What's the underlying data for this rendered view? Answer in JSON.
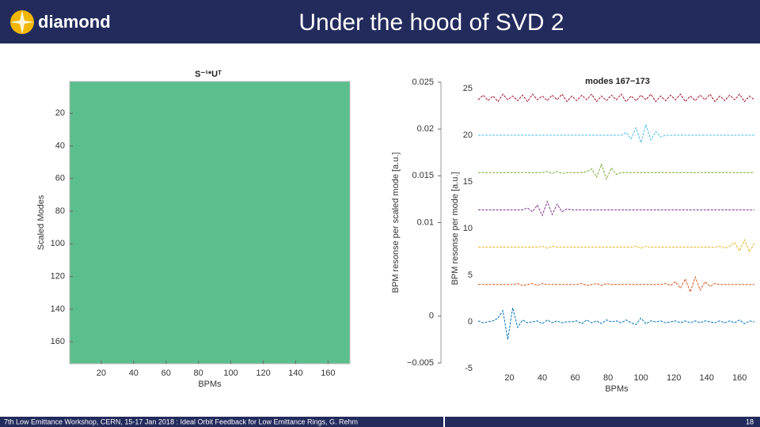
{
  "header": {
    "logo": "diamond",
    "title": "Under the hood of SVD 2"
  },
  "chart_data": [
    {
      "type": "heatmap",
      "title": "S⁻¹*Uᵀ",
      "xlabel": "BPMs",
      "ylabel": "Scaled Modes",
      "color": "#5bbf8d",
      "xlim": [
        0.5,
        173.5
      ],
      "xticks": [
        20,
        40,
        60,
        80,
        100,
        120,
        140,
        160
      ],
      "ylim": [
        0.5,
        173.5
      ],
      "y_reversed": true,
      "yticks": [
        20,
        40,
        60,
        80,
        100,
        120,
        140,
        160
      ]
    },
    {
      "type": "line",
      "ylabel": "BPM resonse per scaled mode [a.u.]",
      "ylim": [
        -0.005,
        0.025
      ],
      "yticks": [
        {
          "value": -0.005,
          "label": "−0.005"
        },
        0,
        0.01,
        0.015,
        0.02,
        0.025
      ]
    },
    {
      "type": "line",
      "title": "modes 167−173",
      "xlabel": "BPMs",
      "ylabel": "BPM resonse per mode [a.u.]",
      "xlim": [
        0.5,
        170
      ],
      "xticks": [
        20,
        40,
        60,
        80,
        100,
        120,
        140,
        160
      ],
      "ylim": [
        -5,
        25
      ],
      "yticks": [
        -5,
        0,
        5,
        10,
        15,
        20,
        25
      ],
      "x": [
        1,
        4,
        7,
        10,
        13,
        16,
        19,
        22,
        25,
        28,
        31,
        34,
        37,
        40,
        43,
        46,
        49,
        52,
        55,
        58,
        61,
        64,
        67,
        70,
        73,
        76,
        79,
        82,
        85,
        88,
        91,
        94,
        97,
        100,
        103,
        106,
        109,
        112,
        115,
        118,
        121,
        124,
        127,
        130,
        133,
        136,
        139,
        142,
        145,
        148,
        151,
        154,
        157,
        160,
        163,
        166,
        169
      ],
      "series": [
        {
          "color": "#0072bd",
          "values": [
            0.1,
            -0.1,
            0,
            0.1,
            0.4,
            1.2,
            -1.9,
            1.5,
            -0.6,
            0.2,
            -0.1,
            0,
            0.1,
            -0.2,
            0.2,
            -0.1,
            0.1,
            -0.1,
            0,
            0,
            0.1,
            -0.2,
            0.2,
            -0.1,
            0.1,
            -0.2,
            0.2,
            0,
            0.1,
            -0.1,
            0.2,
            -0.1,
            -0.3,
            0.4,
            -0.2,
            0.1,
            0,
            0.1,
            -0.1,
            0,
            0.1,
            -0.1,
            0.1,
            -0.1,
            0.1,
            -0.1,
            0.1,
            0,
            -0.1,
            0.1,
            -0.1,
            0.1,
            -0.1,
            0.2,
            -0.2,
            0.1,
            0
          ]
        },
        {
          "color": "#d95319",
          "values": [
            4,
            4,
            4,
            4,
            4,
            4,
            4,
            4,
            4.1,
            3.9,
            4,
            4.1,
            3.9,
            4.1,
            4,
            4,
            4,
            4,
            4,
            4,
            4,
            4.1,
            3.9,
            4,
            4.1,
            3.9,
            4.1,
            4,
            4,
            4,
            4,
            4,
            4,
            4,
            4,
            4,
            4,
            4,
            4.1,
            3.9,
            4.3,
            3.6,
            4.6,
            3.2,
            4.8,
            3.4,
            4.3,
            3.8,
            4.1,
            4,
            4,
            4,
            4,
            4,
            4,
            4,
            4
          ]
        },
        {
          "color": "#edb120",
          "values": [
            8,
            8,
            8,
            8,
            8,
            8,
            8,
            8,
            8,
            8,
            8,
            8,
            8,
            8.1,
            7.9,
            8.1,
            8,
            8,
            8,
            8,
            8,
            8,
            8,
            8,
            8,
            8,
            8,
            8,
            8,
            8,
            8,
            8,
            8.1,
            7.9,
            8.1,
            8,
            8,
            8,
            8,
            8,
            8,
            8,
            8,
            8,
            8,
            8,
            8,
            8,
            8,
            8.1,
            7.9,
            8.1,
            8.5,
            7.6,
            8.8,
            7.5,
            8.4
          ]
        },
        {
          "color": "#7e2f8e",
          "values": [
            12,
            12,
            12,
            12,
            12,
            12,
            12,
            12,
            12,
            12,
            12.2,
            11.8,
            12.5,
            11.4,
            12.9,
            11.5,
            12.6,
            11.8,
            12.1,
            12,
            12,
            12,
            12,
            12,
            12,
            12,
            12,
            12,
            12,
            12,
            12,
            12,
            12,
            12,
            12,
            12,
            12,
            12,
            12,
            12,
            12,
            12,
            12,
            12,
            12,
            12,
            12,
            12,
            12,
            12,
            12,
            12,
            12,
            12,
            12,
            12,
            12
          ]
        },
        {
          "color": "#77ac30",
          "values": [
            16,
            16,
            16,
            16,
            16,
            16,
            16,
            16,
            16,
            16,
            16,
            16,
            16,
            16,
            16.1,
            15.9,
            16.1,
            15.9,
            16,
            16,
            16,
            16,
            16.1,
            16.4,
            15.5,
            16.9,
            15.3,
            16.5,
            15.8,
            16,
            16,
            16,
            16,
            16,
            16,
            16,
            16,
            16,
            16,
            16,
            16,
            16,
            16,
            16,
            16,
            16,
            16,
            16,
            16,
            16,
            16,
            16,
            16,
            16,
            16,
            16,
            16
          ]
        },
        {
          "color": "#4dbeee",
          "values": [
            20,
            20,
            20,
            20,
            20,
            20,
            20,
            20,
            20,
            20,
            20,
            20,
            20,
            20,
            20,
            20,
            20,
            20,
            20,
            20,
            20,
            20,
            20,
            20,
            20,
            20,
            20,
            20,
            20,
            20,
            20.3,
            19.6,
            20.8,
            19.2,
            21.1,
            19.5,
            20.4,
            19.8,
            20,
            20,
            20,
            20,
            20,
            20,
            20,
            20,
            20,
            20,
            20,
            20,
            20,
            20,
            20,
            20,
            20,
            20,
            20
          ]
        },
        {
          "color": "#a2142f",
          "values": [
            23.8,
            24.3,
            23.7,
            24.2,
            23.6,
            24.4,
            23.8,
            24.2,
            23.7,
            24.3,
            23.6,
            24.4,
            23.8,
            24.2,
            23.7,
            24.3,
            23.8,
            24.4,
            23.6,
            24.2,
            23.7,
            24.3,
            23.8,
            24.4,
            23.6,
            24.2,
            23.7,
            24.3,
            23.8,
            24.4,
            23.6,
            24.2,
            23.7,
            24.3,
            23.8,
            24.4,
            23.6,
            24.2,
            23.7,
            24.3,
            23.8,
            24.4,
            23.6,
            24.2,
            23.7,
            24.3,
            23.8,
            24.4,
            23.6,
            24.2,
            23.7,
            24.3,
            23.8,
            24.4,
            23.6,
            24.2,
            23.8
          ]
        }
      ]
    }
  ],
  "footer": {
    "text": "7th Low Emittance Workshop, CERN, 15-17 Jan 2018 : Ideal Orbit Feedback for Low Emittance Rings, G. Rehm",
    "page": "18"
  }
}
